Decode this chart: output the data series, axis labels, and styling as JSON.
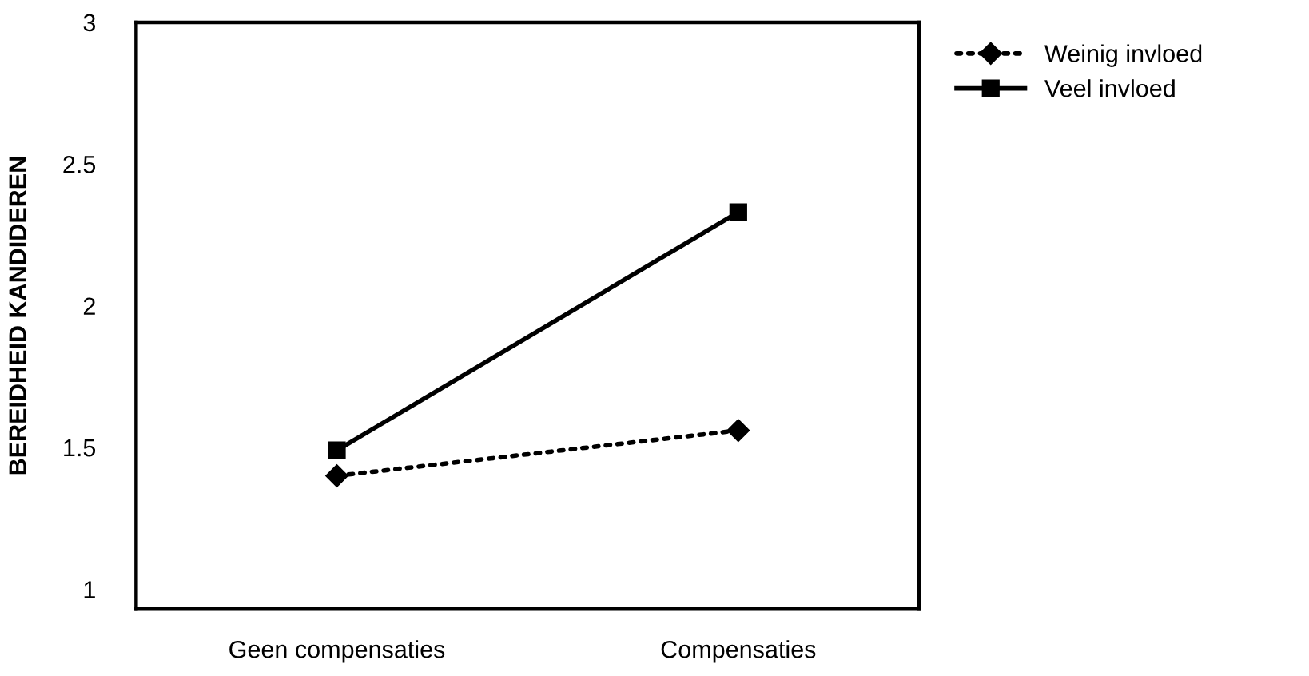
{
  "chart_data": {
    "type": "line",
    "ylabel": "BEREIDHEID KANDIDEREN",
    "categories": [
      "Geen compensaties",
      "Compensaties"
    ],
    "series": [
      {
        "name": "Weinig invloed",
        "color": "#000000",
        "values": [
          1.4,
          1.56
        ],
        "marker": "diamond",
        "line_style": "dotted"
      },
      {
        "name": "Veel invloed",
        "color": "#000000",
        "values": [
          1.49,
          2.33
        ],
        "marker": "square",
        "line_style": "solid"
      }
    ],
    "ylim": [
      0.93,
      3
    ],
    "yticks": [
      1,
      1.5,
      2,
      2.5,
      3
    ],
    "grid": false,
    "legend": "top right"
  }
}
